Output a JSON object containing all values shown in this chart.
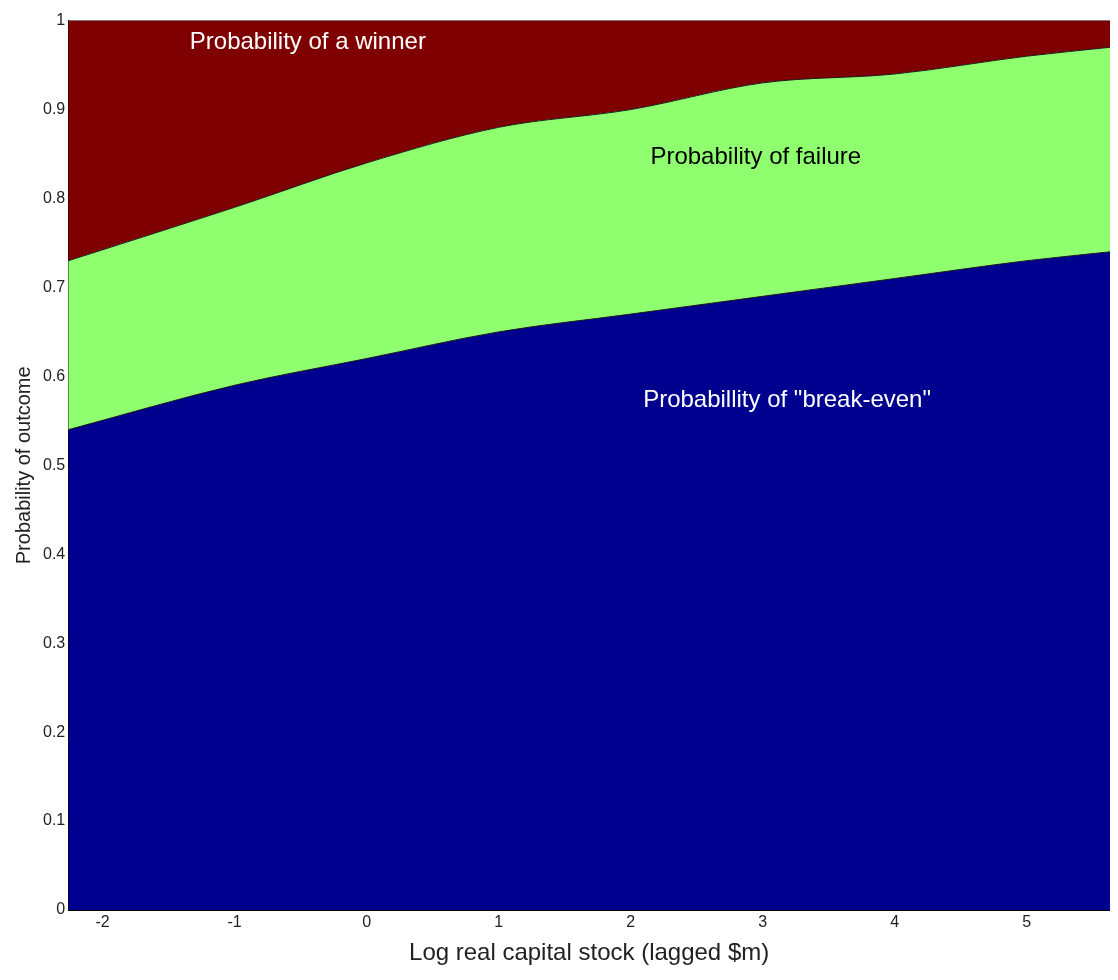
{
  "chart_data": {
    "type": "area",
    "stacked": true,
    "xlabel": "Log real capital stock (lagged $m)",
    "ylabel": "Probability of outcome",
    "x": [
      -2.26,
      -1,
      0,
      1,
      2,
      3,
      4,
      5,
      5.63
    ],
    "series": [
      {
        "name": "Probabillity of \"break-even\"",
        "color": "#00008f",
        "values": [
          0.54,
          0.59,
          0.62,
          0.65,
          0.67,
          0.69,
          0.71,
          0.73,
          0.74
        ]
      },
      {
        "name": "Probability of failure",
        "color": "#8fff6f",
        "values": [
          0.19,
          0.2,
          0.22,
          0.23,
          0.23,
          0.24,
          0.23,
          0.23,
          0.23
        ]
      },
      {
        "name": "Probability of a winner",
        "color": "#7f0000",
        "values": [
          0.27,
          0.21,
          0.16,
          0.12,
          0.1,
          0.07,
          0.06,
          0.04,
          0.03
        ]
      }
    ],
    "xlim": [
      -2.26,
      5.63
    ],
    "ylim": [
      0,
      1
    ],
    "xticks": [
      -2,
      -1,
      0,
      1,
      2,
      3,
      4,
      5
    ],
    "yticks": [
      0,
      0.1,
      0.2,
      0.3,
      0.4,
      0.5,
      0.6,
      0.7,
      0.8,
      0.9,
      1
    ]
  }
}
